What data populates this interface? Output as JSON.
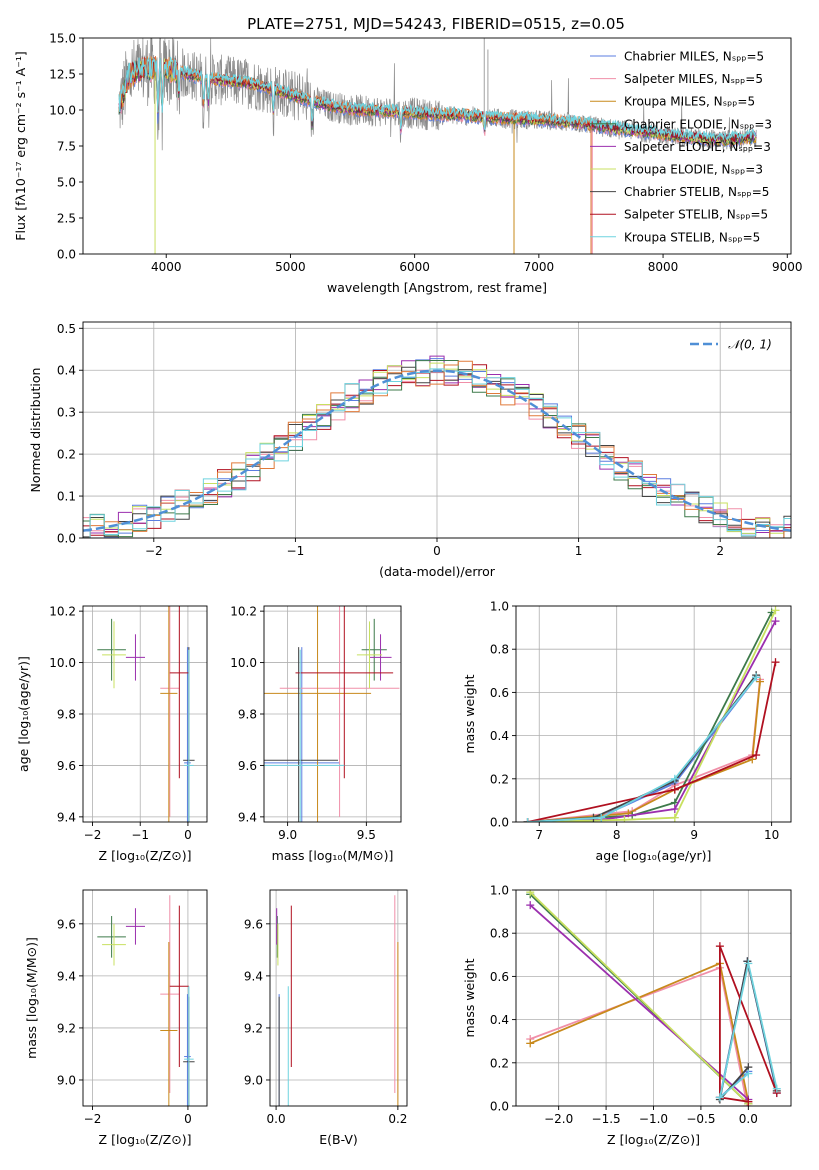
{
  "title": "PLATE=2751, MJD=54243, FIBERID=0515, z=0.05",
  "colors": {
    "chabrier_miles": "#5b7ee0",
    "salpeter_miles": "#f08fa8",
    "kroupa_miles": "#c88a1c",
    "chabrier_elodie": "#3d7a4a",
    "salpeter_elodie": "#9b2fae",
    "kroupa_elodie": "#c8e060",
    "chabrier_stelib": "#444444",
    "salpeter_stelib": "#b01020",
    "kroupa_stelib": "#6fd3df",
    "orange": "#e07a3a",
    "data_grey": "#8a8a8a",
    "normal": "#4f8fd6"
  },
  "chart_data": [
    {
      "type": "line",
      "id": "spectrum",
      "xlabel": "wavelength [Angstrom, rest frame]",
      "ylabel": "Flux [fλ10⁻¹⁷ erg cm⁻² s⁻¹ A⁻¹]",
      "xlim": [
        3330,
        9030
      ],
      "ylim": [
        0,
        15
      ],
      "xticks": [
        4000,
        5000,
        6000,
        7000,
        8000,
        9000
      ],
      "yticks": [
        "0.0",
        "2.5",
        "5.0",
        "7.5",
        "10.0",
        "12.5",
        "15.0"
      ],
      "legend_position": "top-right",
      "legend": [
        "Chabrier MILES, Nₛₚₚ=5",
        "Salpeter MILES, Nₛₚₚ=5",
        "Kroupa MILES, Nₛₚₚ=5",
        "Chabrier ELODIE, Nₛₚₚ=3",
        "Salpeter ELODIE, Nₛₚₚ=3",
        "Kroupa ELODIE, Nₛₚₚ=3",
        "Chabrier STELIB, Nₛₚₚ=5",
        "Salpeter STELIB, Nₛₚₚ=5",
        "Kroupa STELIB, Nₛₚₚ=5"
      ],
      "continuum": [
        [
          3620,
          10.2
        ],
        [
          3700,
          12.3
        ],
        [
          3800,
          12.8
        ],
        [
          3950,
          12.9
        ],
        [
          4100,
          12.6
        ],
        [
          4300,
          12.2
        ],
        [
          4500,
          12.0
        ],
        [
          4700,
          11.8
        ],
        [
          4900,
          11.3
        ],
        [
          5100,
          10.8
        ],
        [
          5300,
          10.3
        ],
        [
          5500,
          10.0
        ],
        [
          5800,
          9.9
        ],
        [
          6100,
          9.7
        ],
        [
          6400,
          9.6
        ],
        [
          6700,
          9.4
        ],
        [
          7000,
          9.3
        ],
        [
          7300,
          9.1
        ],
        [
          7600,
          8.7
        ],
        [
          7900,
          8.4
        ],
        [
          8200,
          8.1
        ],
        [
          8500,
          7.9
        ],
        [
          8750,
          8.1
        ]
      ]
    },
    {
      "type": "line",
      "id": "residuals",
      "xlabel": "(data-model)/error",
      "ylabel": "Normed distribution",
      "xlim": [
        -2.5,
        2.5
      ],
      "ylim": [
        0,
        0.515
      ],
      "xticks": [
        "−2",
        "−1",
        "0",
        "1",
        "2"
      ],
      "yticks": [
        "0.0",
        "0.1",
        "0.2",
        "0.3",
        "0.4",
        "0.5"
      ],
      "legend": [
        "𝒩(0, 1)"
      ],
      "legend_position": "top-right",
      "normal_mean": 0,
      "normal_sigma": 1
    },
    {
      "type": "scatter",
      "id": "age_vs_Z",
      "xlabel": "Z [log₁₀(Z/Z⊙)]",
      "ylabel": "age  [log₁₀(age/yr)]",
      "xlim": [
        -2.2,
        0.4
      ],
      "ylim": [
        9.38,
        10.22
      ],
      "xticks": [
        "−2",
        "−1",
        "0"
      ],
      "yticks": [
        "9.4",
        "9.6",
        "9.8",
        "10.0",
        "10.2"
      ]
    },
    {
      "type": "scatter",
      "id": "age_vs_mass",
      "xlabel": "mass [log₁₀(M/M⊙)]",
      "ylabel": "",
      "xlim": [
        8.85,
        9.72
      ],
      "ylim": [
        9.38,
        10.22
      ],
      "xticks": [
        "9.0",
        "9.5"
      ],
      "yticks": [
        "9.4",
        "9.6",
        "9.8",
        "10.0",
        "10.2"
      ]
    },
    {
      "type": "line",
      "id": "massweight_vs_age",
      "xlabel": "age  [log₁₀(age/yr)]",
      "ylabel": "mass weight",
      "xlim": [
        6.7,
        10.25
      ],
      "ylim": [
        0,
        1
      ],
      "xticks": [
        "7",
        "8",
        "9",
        "10"
      ],
      "yticks": [
        "0.0",
        "0.2",
        "0.4",
        "0.6",
        "0.8",
        "1.0"
      ]
    },
    {
      "type": "scatter",
      "id": "mass_vs_Z",
      "xlabel": "Z [log₁₀(Z/Z⊙)]",
      "ylabel": "mass [log₁₀(M/M⊙)]",
      "xlim": [
        -2.2,
        0.4
      ],
      "ylim": [
        8.9,
        9.73
      ],
      "xticks": [
        "−2",
        "0"
      ],
      "yticks": [
        "9.0",
        "9.2",
        "9.4",
        "9.6"
      ]
    },
    {
      "type": "scatter",
      "id": "mass_vs_ebv",
      "xlabel": "E(B-V)",
      "ylabel": "",
      "xlim": [
        -0.01,
        0.215
      ],
      "ylim": [
        8.9,
        9.73
      ],
      "xticks": [
        "0.0",
        "0.2"
      ],
      "yticks": [
        "9.0",
        "9.2",
        "9.4",
        "9.6"
      ]
    },
    {
      "type": "line",
      "id": "massweight_vs_Z",
      "xlabel": "Z [log₁₀(Z/Z⊙)]",
      "ylabel": "mass weight",
      "xlim": [
        -2.45,
        0.45
      ],
      "ylim": [
        0,
        1
      ],
      "xticks": [
        "−2.0",
        "−1.5",
        "−1.0",
        "−0.5",
        "0.0"
      ],
      "yticks": [
        "0.0",
        "0.2",
        "0.4",
        "0.6",
        "0.8",
        "1.0"
      ]
    }
  ],
  "models": [
    {
      "key": "chabrier_miles",
      "age": [
        9.61,
        0.45
      ],
      "Z": [
        -0.01,
        0.07
      ],
      "mass": [
        9.09,
        0.24
      ],
      "ebv": 0.005,
      "mw_age": [
        [
          6.85,
          0.0
        ],
        [
          7.7,
          0.01
        ],
        [
          8.75,
          0.18
        ],
        [
          9.8,
          0.67
        ]
      ],
      "mw_Z": [
        [
          0.3,
          0.06
        ],
        [
          -0.01,
          0.67
        ],
        [
          -0.3,
          0.04
        ],
        [
          0.0,
          0.16
        ]
      ]
    },
    {
      "key": "salpeter_miles",
      "age": [
        9.9,
        0.5
      ],
      "Z": [
        -0.38,
        0.2
      ],
      "mass": [
        9.33,
        0.38
      ],
      "ebv": 0.195,
      "mw_age": [
        [
          6.85,
          0.0
        ],
        [
          8.2,
          0.05
        ],
        [
          8.75,
          0.17
        ],
        [
          9.75,
          0.31
        ],
        [
          9.85,
          0.66
        ]
      ],
      "mw_Z": [
        [
          -2.3,
          0.31
        ],
        [
          -0.3,
          0.64
        ],
        [
          -0.01,
          0.0
        ]
      ]
    },
    {
      "key": "kroupa_miles",
      "age": [
        9.88,
        0.5
      ],
      "Z": [
        -0.4,
        0.18
      ],
      "mass": [
        9.19,
        0.34
      ],
      "ebv": 0.2,
      "mw_age": [
        [
          6.85,
          0.0
        ],
        [
          8.15,
          0.04
        ],
        [
          8.75,
          0.15
        ],
        [
          9.75,
          0.29
        ],
        [
          9.85,
          0.65
        ]
      ],
      "mw_Z": [
        [
          -2.3,
          0.29
        ],
        [
          -0.3,
          0.66
        ],
        [
          0.0,
          0.02
        ]
      ]
    },
    {
      "key": "chabrier_elodie",
      "age": [
        10.05,
        0.12
      ],
      "Z": [
        -1.6,
        0.3
      ],
      "mass": [
        9.55,
        0.08
      ],
      "ebv": 0.002,
      "mw_age": [
        [
          6.85,
          0.0
        ],
        [
          8.2,
          0.03
        ],
        [
          8.75,
          0.09
        ],
        [
          10.0,
          0.97
        ]
      ],
      "mw_Z": [
        [
          -2.3,
          0.98
        ],
        [
          0.0,
          0.01
        ]
      ]
    },
    {
      "key": "salpeter_elodie",
      "age": [
        10.02,
        0.09
      ],
      "Z": [
        -1.1,
        0.2
      ],
      "mass": [
        9.59,
        0.07
      ],
      "ebv": 0.001,
      "mw_age": [
        [
          6.85,
          0.0
        ],
        [
          7.8,
          0.01
        ],
        [
          8.75,
          0.06
        ],
        [
          10.05,
          0.93
        ]
      ],
      "mw_Z": [
        [
          -2.3,
          0.93
        ],
        [
          0.0,
          0.03
        ]
      ]
    },
    {
      "key": "kroupa_elodie",
      "age": [
        10.03,
        0.13
      ],
      "Z": [
        -1.55,
        0.25
      ],
      "mass": [
        9.52,
        0.08
      ],
      "ebv": 0.003,
      "mw_age": [
        [
          6.85,
          0.0
        ],
        [
          8.1,
          0.01
        ],
        [
          8.75,
          0.02
        ],
        [
          10.05,
          0.98
        ]
      ],
      "mw_Z": [
        [
          -2.3,
          0.99
        ],
        [
          0.0,
          0.01
        ]
      ]
    },
    {
      "key": "chabrier_stelib",
      "age": [
        9.62,
        0.44
      ],
      "Z": [
        0.02,
        0.12
      ],
      "mass": [
        9.07,
        0.25
      ],
      "ebv": 0.005,
      "mw_age": [
        [
          6.85,
          0.0
        ],
        [
          7.7,
          0.02
        ],
        [
          8.75,
          0.19
        ],
        [
          9.8,
          0.68
        ]
      ],
      "mw_Z": [
        [
          0.3,
          0.07
        ],
        [
          -0.01,
          0.67
        ],
        [
          -0.3,
          0.03
        ],
        [
          0.0,
          0.18
        ]
      ]
    },
    {
      "key": "salpeter_stelib",
      "age": [
        9.96,
        0.41
      ],
      "Z": [
        -0.18,
        0.2
      ],
      "mass": [
        9.36,
        0.31
      ],
      "ebv": 0.025,
      "mw_age": [
        [
          6.85,
          0.0
        ],
        [
          8.75,
          0.15
        ],
        [
          9.8,
          0.31
        ],
        [
          10.05,
          0.74
        ]
      ],
      "mw_Z": [
        [
          0.3,
          0.06
        ],
        [
          -0.3,
          0.74
        ],
        [
          -0.3,
          0.04
        ],
        [
          0.0,
          0.02
        ]
      ]
    },
    {
      "key": "kroupa_stelib",
      "age": [
        9.6,
        0.45
      ],
      "Z": [
        0.02,
        0.1
      ],
      "mass": [
        9.08,
        0.28
      ],
      "ebv": 0.02,
      "mw_age": [
        [
          6.85,
          0.0
        ],
        [
          7.8,
          0.02
        ],
        [
          8.75,
          0.2
        ],
        [
          9.8,
          0.67
        ]
      ],
      "mw_Z": [
        [
          0.3,
          0.08
        ],
        [
          0.0,
          0.66
        ],
        [
          -0.3,
          0.04
        ],
        [
          0.0,
          0.15
        ]
      ]
    }
  ]
}
